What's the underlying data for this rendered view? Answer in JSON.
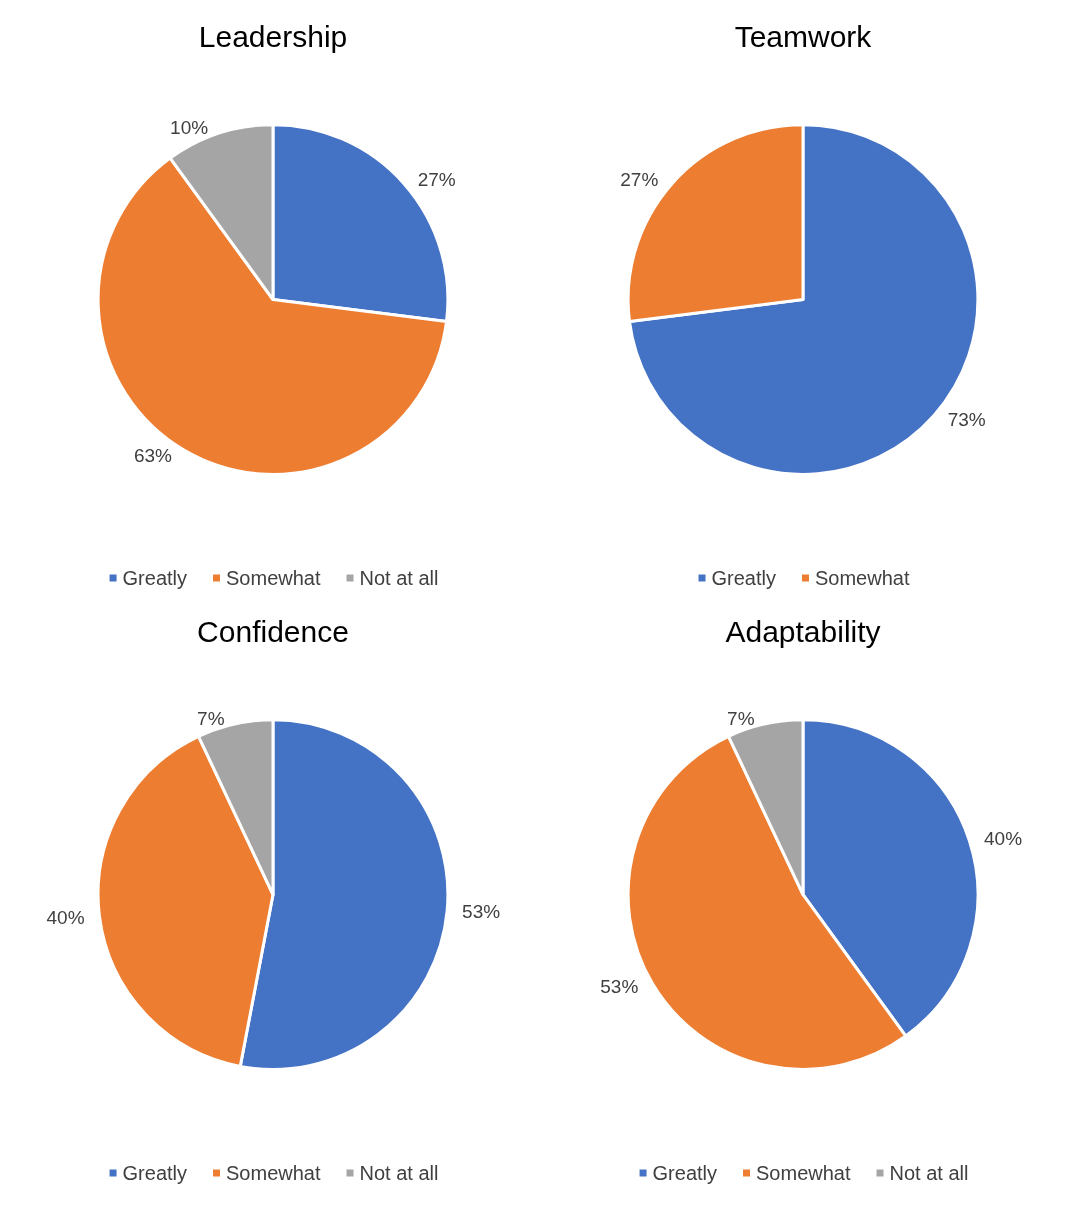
{
  "chart_data": [
    {
      "type": "pie",
      "title": "Leadership",
      "categories": [
        "Greatly",
        "Somewhat",
        "Not at all"
      ],
      "values": [
        27,
        63,
        10
      ],
      "value_labels": [
        "27%",
        "63%",
        "10%"
      ],
      "colors": [
        "#4472c4",
        "#ed7d31",
        "#a5a5a5"
      ],
      "legend": "bottom"
    },
    {
      "type": "pie",
      "title": "Teamwork",
      "categories": [
        "Greatly",
        "Somewhat"
      ],
      "values": [
        73,
        27
      ],
      "value_labels": [
        "73%",
        "27%"
      ],
      "colors": [
        "#4472c4",
        "#ed7d31"
      ],
      "legend": "bottom"
    },
    {
      "type": "pie",
      "title": "Confidence",
      "categories": [
        "Greatly",
        "Somewhat",
        "Not at all"
      ],
      "values": [
        53,
        40,
        7
      ],
      "value_labels": [
        "53%",
        "40%",
        "7%"
      ],
      "colors": [
        "#4472c4",
        "#ed7d31",
        "#a5a5a5"
      ],
      "legend": "bottom"
    },
    {
      "type": "pie",
      "title": "Adaptability",
      "categories": [
        "Greatly",
        "Somewhat",
        "Not at all"
      ],
      "values": [
        40,
        53,
        7
      ],
      "value_labels": [
        "40%",
        "53%",
        "7%"
      ],
      "colors": [
        "#4472c4",
        "#ed7d31",
        "#a5a5a5"
      ],
      "legend": "bottom"
    }
  ]
}
